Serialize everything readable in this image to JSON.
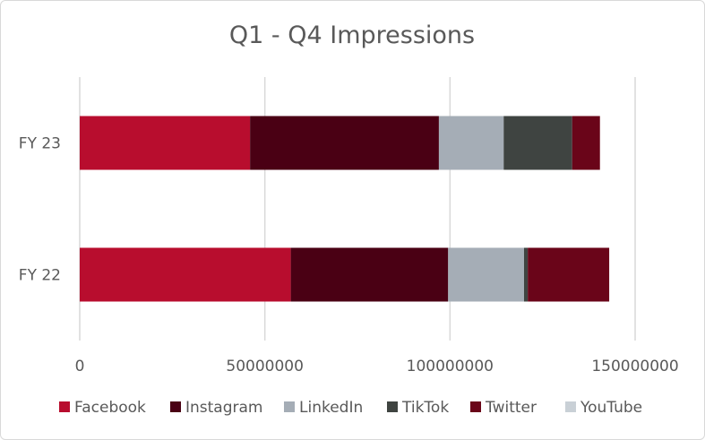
{
  "chart_data": {
    "type": "bar",
    "orientation": "horizontal",
    "stacked": true,
    "title": "Q1 - Q4 Impressions",
    "xlabel": "",
    "ylabel": "",
    "categories": [
      "FY 23",
      "FY 22"
    ],
    "xlim": [
      0,
      150000000
    ],
    "xticks": [
      0,
      50000000,
      100000000,
      150000000
    ],
    "xtick_labels": [
      "0",
      "50000000",
      "100000000",
      "150000000"
    ],
    "grid": "vertical",
    "legend_position": "bottom",
    "series": [
      {
        "name": "Facebook",
        "color": "#b80d2e",
        "values": [
          46000000,
          57000000
        ]
      },
      {
        "name": "Instagram",
        "color": "#4a0014",
        "values": [
          51000000,
          42500000
        ]
      },
      {
        "name": "LinkedIn",
        "color": "#a5adb6",
        "values": [
          17500000,
          20500000
        ]
      },
      {
        "name": "TikTok",
        "color": "#3f4441",
        "values": [
          18500000,
          1000000
        ]
      },
      {
        "name": "Twitter",
        "color": "#6a0519",
        "values": [
          7500000,
          22000000
        ]
      },
      {
        "name": "YouTube",
        "color": "#c9d0d6",
        "values": [
          0,
          0
        ]
      }
    ]
  }
}
